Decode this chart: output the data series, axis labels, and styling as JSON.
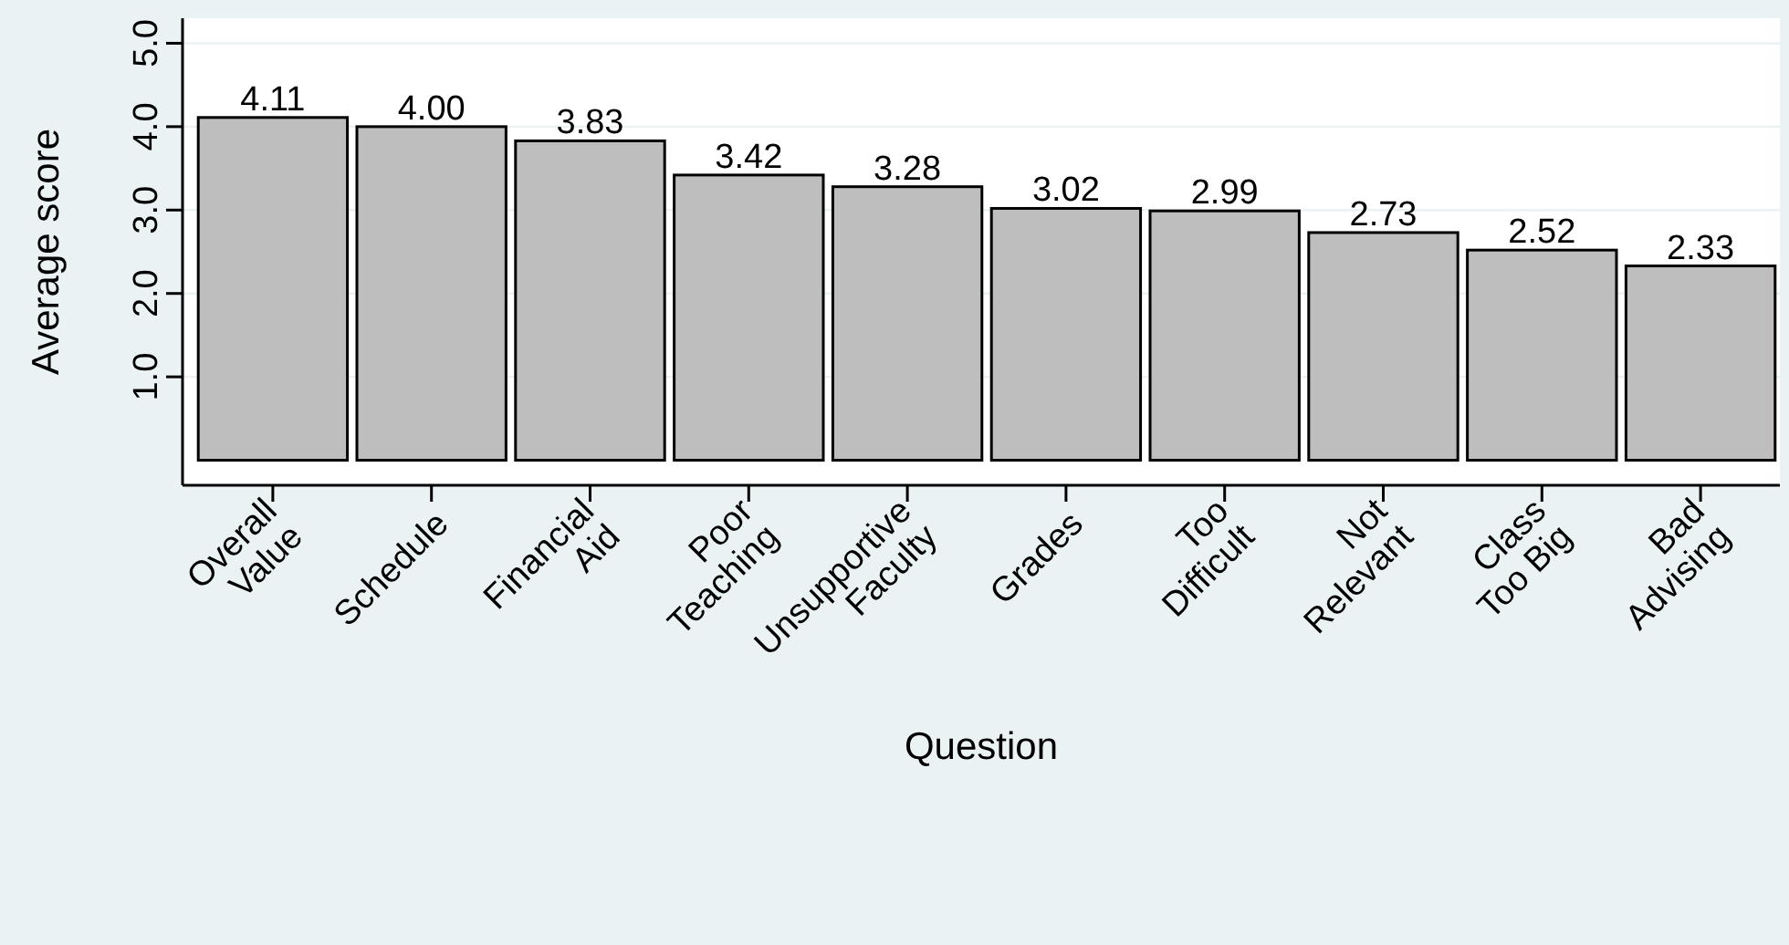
{
  "chart_data": {
    "type": "bar",
    "xlabel": "Question",
    "ylabel": "Average score",
    "categories": [
      "Overall Value",
      "Schedule",
      "Financial Aid",
      "Poor Teaching",
      "Unsupportive Faculty",
      "Grades",
      "Too Difficult",
      "Not Relevant",
      "Class Too Big",
      "Bad Advising"
    ],
    "values": [
      4.11,
      4.0,
      3.83,
      3.42,
      3.28,
      3.02,
      2.99,
      2.73,
      2.52,
      2.33
    ],
    "color": "#bebebe",
    "ylim": [
      -0.3,
      5.3
    ],
    "yticks": [
      {
        "value": 1,
        "label": "1.0"
      },
      {
        "value": 2,
        "label": "2.0"
      },
      {
        "value": 3,
        "label": "3.0"
      },
      {
        "value": 4,
        "label": "4.0"
      },
      {
        "value": 5,
        "label": "5.0"
      }
    ],
    "value_labels": [
      "4.11",
      "4.00",
      "3.83",
      "3.42",
      "3.28",
      "3.02",
      "2.99",
      "2.73",
      "2.52",
      "2.33"
    ],
    "grid": "y"
  }
}
